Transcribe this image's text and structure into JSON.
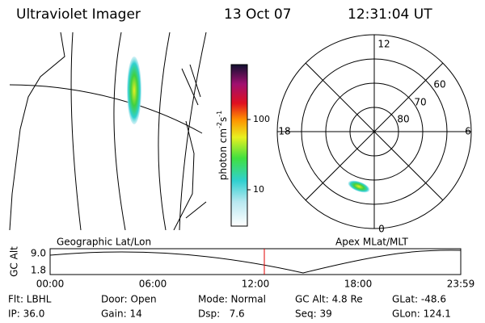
{
  "header": {
    "title": "Ultraviolet Imager",
    "date": "13 Oct 07",
    "time": "12:31:04 UT"
  },
  "map_label": "Geographic Lat/Lon",
  "polar_label": "Apex MLat/MLT",
  "colorbar": {
    "label": [
      "photon cm",
      "-2",
      "s",
      "-1"
    ],
    "ticks": [
      "100",
      "10"
    ]
  },
  "polar": {
    "mlt": [
      "12",
      "18",
      "6",
      "0"
    ],
    "mlat": [
      "60",
      "70",
      "80"
    ]
  },
  "altitude_plot": {
    "ylabel": "GC Alt",
    "yticks": [
      "9.0",
      "1.8"
    ],
    "xticks": [
      "00:00",
      "06:00",
      "12:00",
      "18:00",
      "23:59"
    ]
  },
  "status": [
    [
      "Flt: LBHL",
      "Door: Open",
      "Mode: Normal",
      "GC Alt: 4.8 Re",
      "GLat: -48.6"
    ],
    [
      "IP: 36.0",
      "Gain: 14",
      "Dsp:   7.6",
      "Seq: 39",
      "GLon: 124.1"
    ]
  ]
}
